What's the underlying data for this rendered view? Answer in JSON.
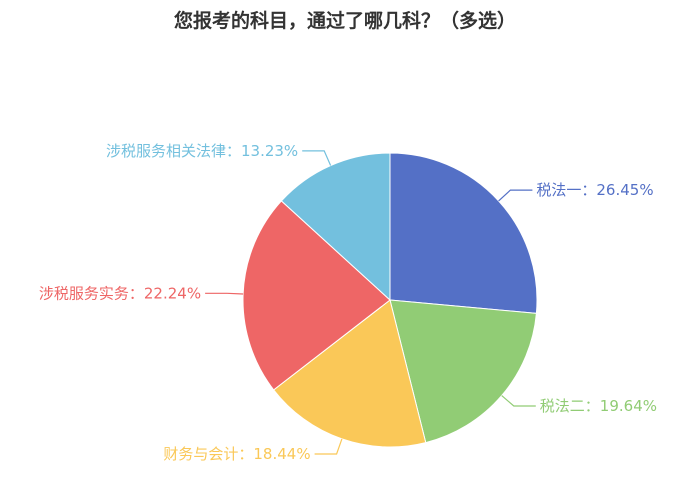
{
  "chart_data": {
    "type": "pie",
    "title": "您报考的科目，通过了哪几科？（多选）",
    "slices": [
      {
        "name": "税法一",
        "value": 26.45,
        "label": "税法一：26.45%",
        "color": "#5470c6"
      },
      {
        "name": "税法二",
        "value": 19.64,
        "label": "税法二：19.64%",
        "color": "#91cc75"
      },
      {
        "name": "财务与会计",
        "value": 18.44,
        "label": "财务与会计：18.44%",
        "color": "#fac858"
      },
      {
        "name": "涉税服务实务",
        "value": 22.24,
        "label": "涉税服务实务：22.24%",
        "color": "#ee6666"
      },
      {
        "name": "涉税服务相关法律",
        "value": 13.23,
        "label": "涉税服务相关法律：13.23%",
        "color": "#73c0de"
      }
    ]
  }
}
